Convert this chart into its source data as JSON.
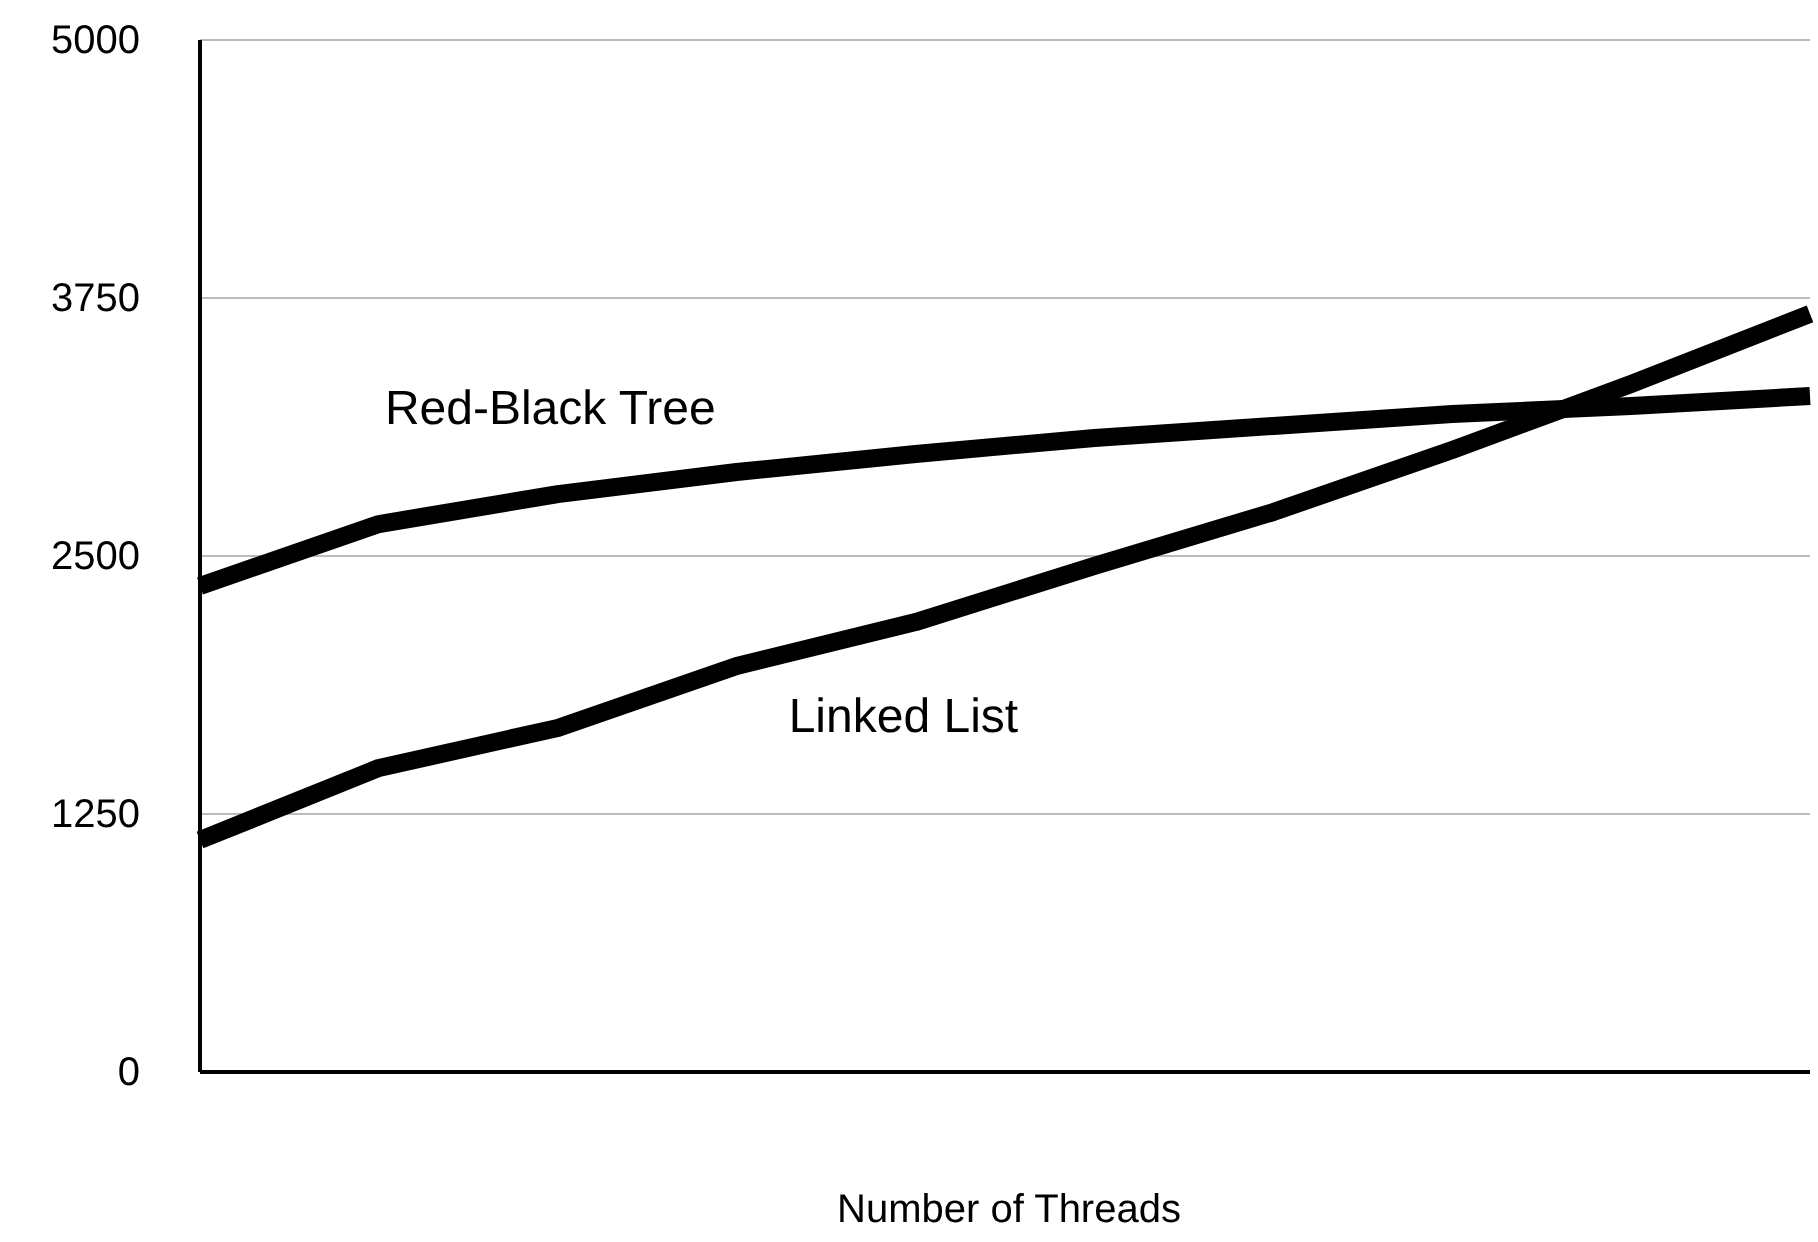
{
  "chart_data": {
    "type": "line",
    "xlabel": "Number of Threads",
    "categories": [
      null,
      null,
      null,
      null,
      null,
      null,
      null,
      null,
      null,
      null
    ],
    "series": [
      {
        "name": "Red-Black Tree",
        "color": "#000000",
        "values": [
          2355,
          2655,
          2800,
          2907,
          2994,
          3072,
          3130,
          3188,
          3227,
          3275
        ]
      },
      {
        "name": "Linked List",
        "color": "#000000",
        "values": [
          1124,
          1473,
          1667,
          1967,
          2180,
          2452,
          2713,
          3014,
          3333,
          3673
        ]
      }
    ],
    "ylim": [
      0,
      5000
    ],
    "yticks": [
      0,
      1250,
      2500,
      3750,
      5000
    ],
    "grid": "y",
    "legend": false,
    "tick_labels": "y",
    "marker": "none",
    "line_style": "solid"
  }
}
